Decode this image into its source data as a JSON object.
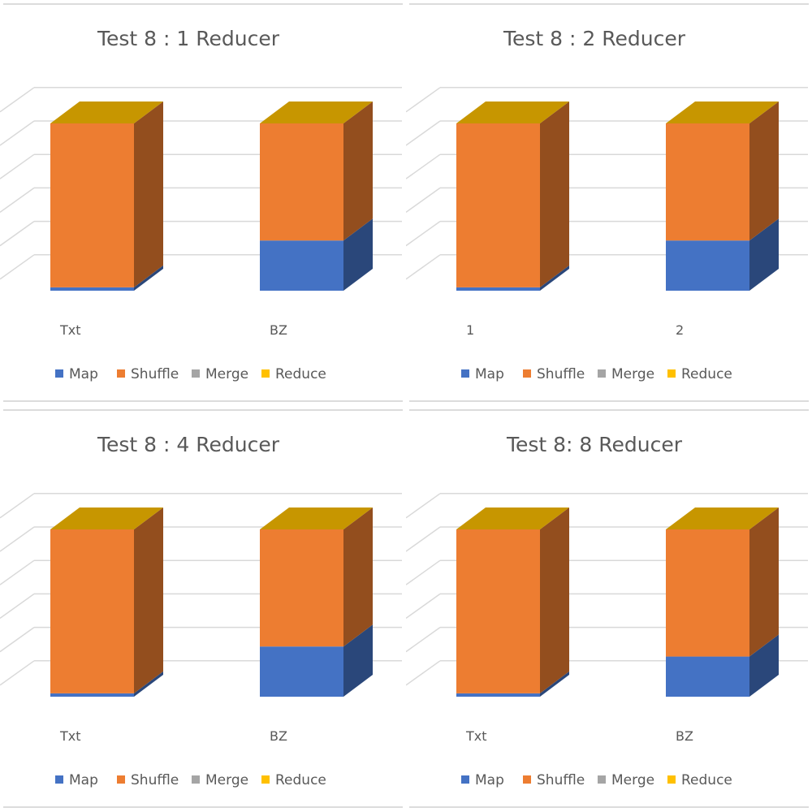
{
  "colors": {
    "Map": "#4472c4",
    "Shuffle": "#ed7d31",
    "Merge": "#a5a5a5",
    "Reduce": "#ffc000",
    "grid": "#d9d9d9",
    "separator": "#d0d0d0"
  },
  "chart_data": [
    {
      "type": "bar",
      "stacked": true,
      "view": "3d",
      "title": "Test 8 : 1 Reducer",
      "categories": [
        "Txt",
        "BZ"
      ],
      "series": [
        {
          "name": "Map",
          "values": [
            2,
            30
          ]
        },
        {
          "name": "Shuffle",
          "values": [
            98,
            70
          ]
        },
        {
          "name": "Merge",
          "values": [
            0,
            0
          ]
        },
        {
          "name": "Reduce",
          "values": [
            0,
            0
          ]
        }
      ],
      "ylim": [
        0,
        120
      ],
      "grid": true,
      "legend": "bottom"
    },
    {
      "type": "bar",
      "stacked": true,
      "view": "3d",
      "title": "Test 8 : 2 Reducer",
      "categories": [
        "1",
        "2"
      ],
      "series": [
        {
          "name": "Map",
          "values": [
            2,
            30
          ]
        },
        {
          "name": "Shuffle",
          "values": [
            98,
            70
          ]
        },
        {
          "name": "Merge",
          "values": [
            0,
            0
          ]
        },
        {
          "name": "Reduce",
          "values": [
            0,
            0
          ]
        }
      ],
      "ylim": [
        0,
        120
      ],
      "grid": true,
      "legend": "bottom"
    },
    {
      "type": "bar",
      "stacked": true,
      "view": "3d",
      "title": "Test 8 : 4 Reducer",
      "categories": [
        "Txt",
        "BZ"
      ],
      "series": [
        {
          "name": "Map",
          "values": [
            2,
            30
          ]
        },
        {
          "name": "Shuffle",
          "values": [
            98,
            70
          ]
        },
        {
          "name": "Merge",
          "values": [
            0,
            0
          ]
        },
        {
          "name": "Reduce",
          "values": [
            0,
            0
          ]
        }
      ],
      "ylim": [
        0,
        120
      ],
      "grid": true,
      "legend": "bottom"
    },
    {
      "type": "bar",
      "stacked": true,
      "view": "3d",
      "title": "Test 8: 8 Reducer",
      "categories": [
        "Txt",
        "BZ"
      ],
      "series": [
        {
          "name": "Map",
          "values": [
            2,
            24
          ]
        },
        {
          "name": "Shuffle",
          "values": [
            98,
            76
          ]
        },
        {
          "name": "Merge",
          "values": [
            0,
            0
          ]
        },
        {
          "name": "Reduce",
          "values": [
            0,
            0
          ]
        }
      ],
      "ylim": [
        0,
        120
      ],
      "grid": true,
      "legend": "bottom"
    }
  ]
}
